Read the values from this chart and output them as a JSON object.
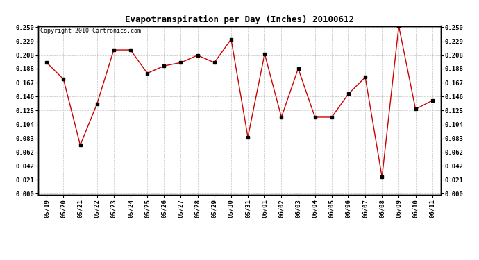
{
  "title": "Evapotranspiration per Day (Inches) 20100612",
  "copyright": "Copyright 2010 Cartronics.com",
  "x_labels": [
    "05/19",
    "05/20",
    "05/21",
    "05/22",
    "05/23",
    "05/24",
    "05/25",
    "05/26",
    "05/27",
    "05/28",
    "05/29",
    "05/30",
    "05/31",
    "06/01",
    "06/02",
    "06/03",
    "06/04",
    "06/05",
    "06/06",
    "06/07",
    "06/08",
    "06/09",
    "06/10",
    "06/11"
  ],
  "y_values": [
    0.197,
    0.172,
    0.073,
    0.135,
    0.216,
    0.216,
    0.181,
    0.192,
    0.197,
    0.208,
    0.197,
    0.232,
    0.085,
    0.21,
    0.115,
    0.188,
    0.115,
    0.115,
    0.15,
    0.175,
    0.025,
    0.252,
    0.127,
    0.14
  ],
  "y_ticks": [
    0.0,
    0.021,
    0.042,
    0.062,
    0.083,
    0.104,
    0.125,
    0.146,
    0.167,
    0.188,
    0.208,
    0.229,
    0.25
  ],
  "ylim": [
    0.0,
    0.25
  ],
  "line_color": "#cc0000",
  "marker_color": "#000000",
  "bg_color": "#ffffff",
  "grid_color": "#aaaaaa",
  "title_fontsize": 9,
  "tick_fontsize": 6.5,
  "copyright_fontsize": 6
}
